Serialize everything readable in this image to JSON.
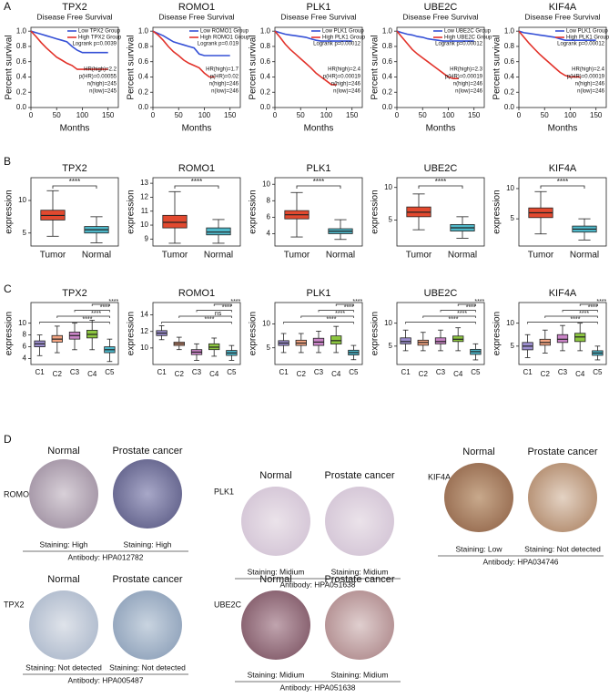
{
  "panel_labels": [
    "A",
    "B",
    "C",
    "D"
  ],
  "chart_data": [
    {
      "type": "km",
      "title": "TPX2",
      "subtitle": "Disease Free Survival",
      "xlabel": "Months",
      "ylabel": "Percent survival",
      "x": [
        0,
        10,
        20,
        30,
        40,
        50,
        60,
        70,
        80,
        90,
        100,
        110,
        120,
        130,
        140,
        150
      ],
      "series": [
        {
          "name": "Low TPX2 Group",
          "color": "#3550d6",
          "values": [
            1,
            0.98,
            0.96,
            0.94,
            0.92,
            0.9,
            0.88,
            0.86,
            0.8,
            0.75,
            0.72,
            0.72,
            0.72,
            0.72,
            0.72,
            0.72
          ]
        },
        {
          "name": "High TPX2 Group",
          "color": "#e2322a",
          "values": [
            1,
            0.93,
            0.85,
            0.78,
            0.72,
            0.66,
            0.62,
            0.58,
            0.55,
            0.5,
            0.5,
            0.5,
            0.5,
            0.5,
            0.5,
            0.5
          ]
        }
      ],
      "annotations": [
        "Logrank p=0.0039",
        "HR(high)=2.2",
        "p(HR)=0.00055",
        "n(high)=245",
        "n(low)=245"
      ],
      "xlim": [
        0,
        170
      ],
      "ylim": [
        0,
        1.05
      ],
      "xticks": [
        0,
        50,
        100,
        150
      ],
      "yticks": [
        {
          "value": 0,
          "label": "0.0"
        },
        0.2,
        0.4,
        0.6,
        0.8,
        {
          "value": 1,
          "label": "1.0"
        }
      ]
    },
    {
      "type": "km",
      "title": "ROMO1",
      "subtitle": "Disease Free Survival",
      "xlabel": "Months",
      "ylabel": "Percent survival",
      "x": [
        0,
        10,
        20,
        30,
        40,
        50,
        60,
        70,
        80,
        90,
        100,
        110,
        120,
        130,
        140,
        150
      ],
      "series": [
        {
          "name": "Low ROMO1 Group",
          "color": "#3550d6",
          "values": [
            1,
            0.97,
            0.94,
            0.9,
            0.86,
            0.84,
            0.82,
            0.8,
            0.78,
            0.7,
            0.68,
            0.68,
            0.68,
            0.68,
            0.68,
            0.68
          ]
        },
        {
          "name": "High ROMO1 Group",
          "color": "#e2322a",
          "values": [
            1,
            0.95,
            0.88,
            0.8,
            0.73,
            0.68,
            0.62,
            0.58,
            0.55,
            0.52,
            0.45,
            0.4,
            0.4,
            null,
            null,
            null
          ]
        }
      ],
      "annotations": [
        "Logrank p=0.019",
        "HR(high)=1.7",
        "p(HR)=0.02",
        "n(high)=246",
        "n(low)=246"
      ],
      "xlim": [
        0,
        170
      ],
      "ylim": [
        0,
        1.05
      ],
      "xticks": [
        0,
        50,
        100,
        150
      ],
      "yticks": [
        {
          "value": 0,
          "label": "0.0"
        },
        0.2,
        0.4,
        0.6,
        0.8,
        {
          "value": 1,
          "label": "1.0"
        }
      ]
    },
    {
      "type": "km",
      "title": "PLK1",
      "subtitle": "Disease Free Survival",
      "xlabel": "Months",
      "ylabel": "Percent survival",
      "x": [
        0,
        10,
        20,
        30,
        40,
        50,
        60,
        70,
        80,
        90,
        100,
        110,
        120,
        130,
        140,
        150
      ],
      "series": [
        {
          "name": "Low PLK1 Group",
          "color": "#3550d6",
          "values": [
            1,
            0.98,
            0.96,
            0.95,
            0.94,
            0.93,
            0.92,
            0.9,
            0.88,
            0.87,
            0.87,
            0.87,
            0.87,
            0.87,
            0.87,
            0.87
          ]
        },
        {
          "name": "High PLK1 Group",
          "color": "#e2322a",
          "values": [
            1,
            0.92,
            0.83,
            0.76,
            0.7,
            0.64,
            0.58,
            0.52,
            0.45,
            0.4,
            0.35,
            0.3,
            0.3,
            null,
            null,
            null
          ]
        }
      ],
      "annotations": [
        "Logrank p=0.00012",
        "HR(high)=2.4",
        "p(HR)=0.00019",
        "n(high)=246",
        "n(low)=246"
      ],
      "xlim": [
        0,
        170
      ],
      "ylim": [
        0,
        1.05
      ],
      "xticks": [
        0,
        50,
        100,
        150
      ],
      "yticks": [
        {
          "value": 0,
          "label": "0.0"
        },
        0.2,
        0.4,
        0.6,
        0.8,
        {
          "value": 1,
          "label": "1.0"
        }
      ]
    },
    {
      "type": "km",
      "title": "UBE2C",
      "subtitle": "Disease Free Survival",
      "xlabel": "Months",
      "ylabel": "Percent survival",
      "x": [
        0,
        10,
        20,
        30,
        40,
        50,
        60,
        70,
        80,
        90,
        100,
        110,
        120,
        130,
        140,
        150
      ],
      "series": [
        {
          "name": "Low UBE2C Group",
          "color": "#3550d6",
          "values": [
            1,
            0.98,
            0.96,
            0.95,
            0.93,
            0.92,
            0.9,
            0.89,
            0.88,
            0.87,
            0.87,
            0.87,
            0.87,
            0.87,
            0.87,
            0.87
          ]
        },
        {
          "name": "High UBE2C Group",
          "color": "#e2322a",
          "values": [
            1,
            0.92,
            0.84,
            0.76,
            0.7,
            0.65,
            0.6,
            0.55,
            0.5,
            0.45,
            0.4,
            0.38,
            0.38,
            null,
            null,
            null
          ]
        }
      ],
      "annotations": [
        "Logrank p=0.00012",
        "HR(high)=2.3",
        "p(HR)=0.00019",
        "n(high)=246",
        "n(low)=246"
      ],
      "xlim": [
        0,
        170
      ],
      "ylim": [
        0,
        1.05
      ],
      "xticks": [
        0,
        50,
        100,
        150
      ],
      "yticks": [
        {
          "value": 0,
          "label": "0.0"
        },
        0.2,
        0.4,
        0.6,
        0.8,
        {
          "value": 1,
          "label": "1.0"
        }
      ]
    },
    {
      "type": "km",
      "title": "KIF4A",
      "subtitle": "Disease Free Survival",
      "xlabel": "Months",
      "ylabel": "Percent survival",
      "x": [
        0,
        10,
        20,
        30,
        40,
        50,
        60,
        70,
        80,
        90,
        100,
        110,
        120,
        130,
        140,
        150
      ],
      "series": [
        {
          "name": "Low PLK1 Group",
          "color": "#3550d6",
          "values": [
            1,
            0.98,
            0.97,
            0.96,
            0.95,
            0.94,
            0.93,
            0.92,
            0.9,
            0.88,
            0.88,
            0.88,
            0.88,
            0.88,
            0.88,
            0.88
          ]
        },
        {
          "name": "High PLK1 Group",
          "color": "#e2322a",
          "values": [
            1,
            0.92,
            0.84,
            0.77,
            0.7,
            0.64,
            0.58,
            0.52,
            0.46,
            0.42,
            0.4,
            0.4,
            0.4,
            null,
            null,
            null
          ]
        }
      ],
      "annotations": [
        "Logrank p=0.00012",
        "HR(high)=2.4",
        "p(HR)=0.00019",
        "n(high)=246",
        "n(low)=246"
      ],
      "xlim": [
        0,
        170
      ],
      "ylim": [
        0,
        1.05
      ],
      "xticks": [
        0,
        50,
        100,
        150
      ],
      "yticks": [
        {
          "value": 0,
          "label": "0.0"
        },
        0.2,
        0.4,
        0.6,
        0.8,
        {
          "value": 1,
          "label": "1.0"
        }
      ]
    },
    {
      "type": "box",
      "title": "TPX2",
      "ylabel": "expression",
      "categories": [
        "Tumor",
        "Normal"
      ],
      "colors": [
        "#e2492f",
        "#4fb8c9"
      ],
      "boxes": [
        [
          4.5,
          7,
          7.7,
          8.5,
          11.5
        ],
        [
          3.5,
          5,
          5.5,
          6,
          7.5
        ]
      ],
      "significance": "****",
      "ylim": [
        3,
        13.5
      ],
      "yticks": [
        5,
        10
      ]
    },
    {
      "type": "box",
      "title": "ROMO1",
      "ylabel": "expression",
      "categories": [
        "Tumor",
        "Normal"
      ],
      "colors": [
        "#e2492f",
        "#4fb8c9"
      ],
      "boxes": [
        [
          8.7,
          9.8,
          10.2,
          10.7,
          12.4
        ],
        [
          8.7,
          9.3,
          9.5,
          9.8,
          10.4
        ]
      ],
      "significance": "****",
      "ylim": [
        8.5,
        13.4
      ],
      "yticks": [
        9,
        10,
        11,
        12,
        13
      ]
    },
    {
      "type": "box",
      "title": "PLK1",
      "ylabel": "expression",
      "categories": [
        "Tumor",
        "Normal"
      ],
      "colors": [
        "#e2492f",
        "#4fb8c9"
      ],
      "boxes": [
        [
          3.6,
          5.8,
          6.3,
          6.8,
          9
        ],
        [
          3.3,
          4,
          4.3,
          4.6,
          5.7
        ]
      ],
      "significance": "****",
      "ylim": [
        2.5,
        10.8
      ],
      "yticks": [
        4,
        6,
        8,
        10
      ]
    },
    {
      "type": "box",
      "title": "UBE2C",
      "ylabel": "expression",
      "categories": [
        "Tumor",
        "Normal"
      ],
      "colors": [
        "#e2492f",
        "#4fb8c9"
      ],
      "boxes": [
        [
          3.5,
          5.5,
          6.2,
          7,
          9
        ],
        [
          2.2,
          3.3,
          3.8,
          4.3,
          5.5
        ]
      ],
      "significance": "****",
      "ylim": [
        1,
        11.5
      ],
      "yticks": [
        5,
        10
      ]
    },
    {
      "type": "box",
      "title": "KIF4A",
      "ylabel": "expression",
      "categories": [
        "Tumor",
        "Normal"
      ],
      "colors": [
        "#e2492f",
        "#4fb8c9"
      ],
      "boxes": [
        [
          2.5,
          5.2,
          6,
          6.8,
          9.5
        ],
        [
          1.5,
          2.8,
          3.3,
          3.8,
          5
        ]
      ],
      "significance": "****",
      "ylim": [
        0.5,
        11.8
      ],
      "yticks": [
        5,
        10
      ]
    },
    {
      "type": "cluster-box",
      "title": "TPX2",
      "ylabel": "expression",
      "categories": [
        "C1",
        "C2",
        "C3",
        "C4",
        "C5"
      ],
      "colors": [
        "#9d8fd0",
        "#f4a582",
        "#c984c6",
        "#8cc63f",
        "#4bb6c9"
      ],
      "boxes": [
        [
          4.5,
          6,
          6.5,
          7,
          8
        ],
        [
          5,
          6.8,
          7.3,
          7.9,
          9.5
        ],
        [
          5.5,
          7.3,
          7.9,
          8.5,
          10
        ],
        [
          5.5,
          7.5,
          8.1,
          8.8,
          10.5
        ],
        [
          3.5,
          5,
          5.5,
          6,
          7.3
        ]
      ],
      "significance": [
        "****",
        "****",
        "****",
        "****"
      ],
      "ylim": [
        3,
        13.5
      ],
      "yticks": [
        4,
        6,
        8,
        10
      ]
    },
    {
      "type": "cluster-box",
      "title": "ROMO1",
      "ylabel": "expression",
      "categories": [
        "C1",
        "C2",
        "C3",
        "C4",
        "C5"
      ],
      "colors": [
        "#9d8fd0",
        "#f4a582",
        "#c984c6",
        "#8cc63f",
        "#4bb6c9"
      ],
      "boxes": [
        [
          11,
          11.5,
          11.8,
          12.1,
          12.7
        ],
        [
          9.8,
          10.3,
          10.5,
          10.7,
          11.3
        ],
        [
          8.5,
          9.2,
          9.5,
          9.8,
          10.5
        ],
        [
          9,
          9.8,
          10.1,
          10.5,
          11.2
        ],
        [
          8.5,
          9.1,
          9.4,
          9.7,
          10.3
        ]
      ],
      "significance": [
        "****",
        "ns",
        "****",
        "****"
      ],
      "ylim": [
        8,
        15.5
      ],
      "yticks": [
        10,
        12,
        14
      ]
    },
    {
      "type": "cluster-box",
      "title": "PLK1",
      "ylabel": "expression",
      "categories": [
        "C1",
        "C2",
        "C3",
        "C4",
        "C5"
      ],
      "colors": [
        "#9d8fd0",
        "#f4a582",
        "#c984c6",
        "#8cc63f",
        "#4bb6c9"
      ],
      "boxes": [
        [
          4,
          5.5,
          6,
          6.5,
          8
        ],
        [
          4,
          5.5,
          6,
          6.6,
          8
        ],
        [
          4,
          5.5,
          6.2,
          7,
          8.5
        ],
        [
          4,
          5.8,
          6.5,
          7.5,
          9.5
        ],
        [
          2.5,
          3.5,
          4,
          4.5,
          5.5
        ]
      ],
      "significance": [
        "****",
        "****",
        "****",
        "****"
      ],
      "ylim": [
        1.5,
        14.5
      ],
      "yticks": [
        5,
        10
      ]
    },
    {
      "type": "cluster-box",
      "title": "UBE2C",
      "ylabel": "expression",
      "categories": [
        "C1",
        "C2",
        "C3",
        "C4",
        "C5"
      ],
      "colors": [
        "#9d8fd0",
        "#f4a582",
        "#c984c6",
        "#8cc63f",
        "#4bb6c9"
      ],
      "boxes": [
        [
          4,
          5.5,
          6,
          6.8,
          8.5
        ],
        [
          4,
          5.2,
          5.8,
          6.3,
          8
        ],
        [
          4,
          5.5,
          6,
          6.8,
          8.5
        ],
        [
          4,
          6,
          6.5,
          7.2,
          9
        ],
        [
          2,
          3.2,
          3.8,
          4.3,
          5.5
        ]
      ],
      "significance": [
        "****",
        "****",
        "****",
        "****"
      ],
      "ylim": [
        1,
        14.5
      ],
      "yticks": [
        5,
        10
      ]
    },
    {
      "type": "cluster-box",
      "title": "KIF4A",
      "ylabel": "expression",
      "categories": [
        "C1",
        "C2",
        "C3",
        "C4",
        "C5"
      ],
      "colors": [
        "#9d8fd0",
        "#f4a582",
        "#c984c6",
        "#8cc63f",
        "#4bb6c9"
      ],
      "boxes": [
        [
          2.5,
          4.2,
          5,
          5.8,
          7.5
        ],
        [
          3.5,
          5.2,
          5.8,
          6.5,
          8.5
        ],
        [
          4,
          5.8,
          6.5,
          7.5,
          9.5
        ],
        [
          4,
          6,
          7,
          7.8,
          10
        ],
        [
          2,
          3,
          3.5,
          4,
          5
        ]
      ],
      "significance": [
        "****",
        "****",
        "****",
        "****"
      ],
      "ylim": [
        1,
        14.5
      ],
      "yticks": [
        5,
        10
      ]
    }
  ],
  "ihc": [
    {
      "gene": "ROMO1",
      "normal": "Normal",
      "cancer": "Prostate cancer",
      "normal_staining": "Staining: High",
      "cancer_staining": "Staining: High",
      "antibody": "Antibody: HPA012782"
    },
    {
      "gene": "PLK1",
      "normal": "Normal",
      "cancer": "Prostate cancer",
      "normal_staining": "Staining: Midium",
      "cancer_staining": "Staining: Midium",
      "antibody": "Antibody: HPA051638"
    },
    {
      "gene": "KIF4A",
      "normal": "Normal",
      "cancer": "Prostate cancer",
      "normal_staining": "Staining: Low",
      "cancer_staining": "Staining: Not detected",
      "antibody": "Antibody: HPA034746"
    },
    {
      "gene": "TPX2",
      "normal": "Normal",
      "cancer": "Prostate cancer",
      "normal_staining": "Staining: Not detected",
      "cancer_staining": "Staining: Not detected",
      "antibody": "Antibody: HPA005487"
    },
    {
      "gene": "UBE2C",
      "normal": "Normal",
      "cancer": "Prostate cancer",
      "normal_staining": "Staining: Midium",
      "cancer_staining": "Staining: Midium",
      "antibody": "Antibody: HPA051638"
    }
  ]
}
